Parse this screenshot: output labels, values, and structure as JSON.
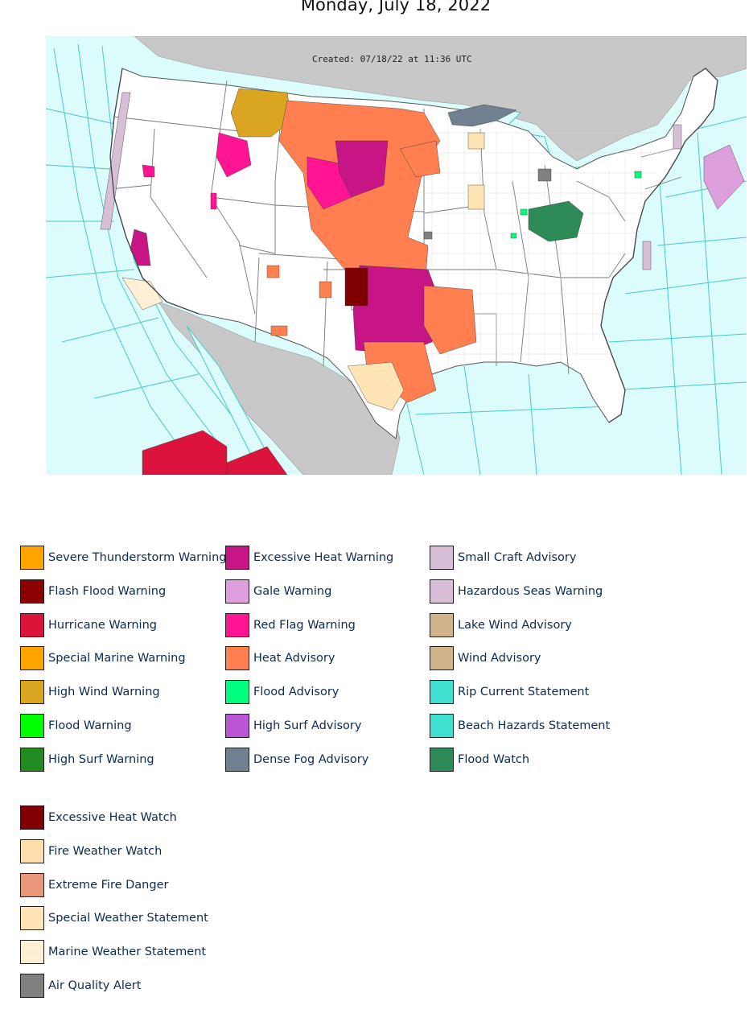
{
  "page": {
    "title": "Monday, July 18, 2022"
  },
  "map": {
    "created_label": "Created: 07/18/22 at 11:36 UTC",
    "colors": {
      "ocean": "#dcfcfc",
      "land_outside": "#c8c8c8",
      "land_us": "#ffffff",
      "zone_lines": "#48c8c8",
      "county_lines": "#bdbdbd"
    }
  },
  "legend": {
    "groups": [
      {
        "items": [
          {
            "label": "Severe Thunderstorm Warning",
            "color": "#ffa500"
          },
          {
            "label": "Flash Flood Warning",
            "color": "#8b0000"
          },
          {
            "label": "Hurricane Warning",
            "color": "#dc143c"
          },
          {
            "label": "Special Marine Warning",
            "color": "#ffa500"
          },
          {
            "label": "High Wind Warning",
            "color": "#daa520"
          },
          {
            "label": "Flood Warning",
            "color": "#00ff00"
          },
          {
            "label": "High Surf Warning",
            "color": "#228b22"
          }
        ]
      },
      {
        "items": [
          {
            "label": "Excessive Heat Warning",
            "color": "#c71585"
          },
          {
            "label": "Gale Warning",
            "color": "#dda0dd"
          },
          {
            "label": "Red Flag Warning",
            "color": "#ff1493"
          },
          {
            "label": "Heat Advisory",
            "color": "#ff7f50"
          },
          {
            "label": "Flood Advisory",
            "color": "#00ff7f"
          },
          {
            "label": "High Surf Advisory",
            "color": "#ba55d3"
          },
          {
            "label": "Dense Fog Advisory",
            "color": "#708090"
          }
        ]
      },
      {
        "items": [
          {
            "label": "Small Craft Advisory",
            "color": "#d8bfd8"
          },
          {
            "label": "Hazardous Seas Warning",
            "color": "#d8bfd8"
          },
          {
            "label": "Lake Wind Advisory",
            "color": "#d2b48c"
          },
          {
            "label": "Wind Advisory",
            "color": "#d2b48c"
          },
          {
            "label": "Rip Current Statement",
            "color": "#40e0d0"
          },
          {
            "label": "Beach Hazards Statement",
            "color": "#40e0d0"
          },
          {
            "label": "Flood Watch",
            "color": "#2e8b57"
          }
        ]
      },
      {
        "items": [
          {
            "label": "Excessive Heat Watch",
            "color": "#800000"
          },
          {
            "label": "Fire Weather Watch",
            "color": "#ffdead"
          },
          {
            "label": "Extreme Fire Danger",
            "color": "#e9967a"
          },
          {
            "label": "Special Weather Statement",
            "color": "#ffe4b5"
          },
          {
            "label": "Marine Weather Statement",
            "color": "#ffefd5"
          },
          {
            "label": "Air Quality Alert",
            "color": "#808080"
          }
        ]
      }
    ]
  }
}
